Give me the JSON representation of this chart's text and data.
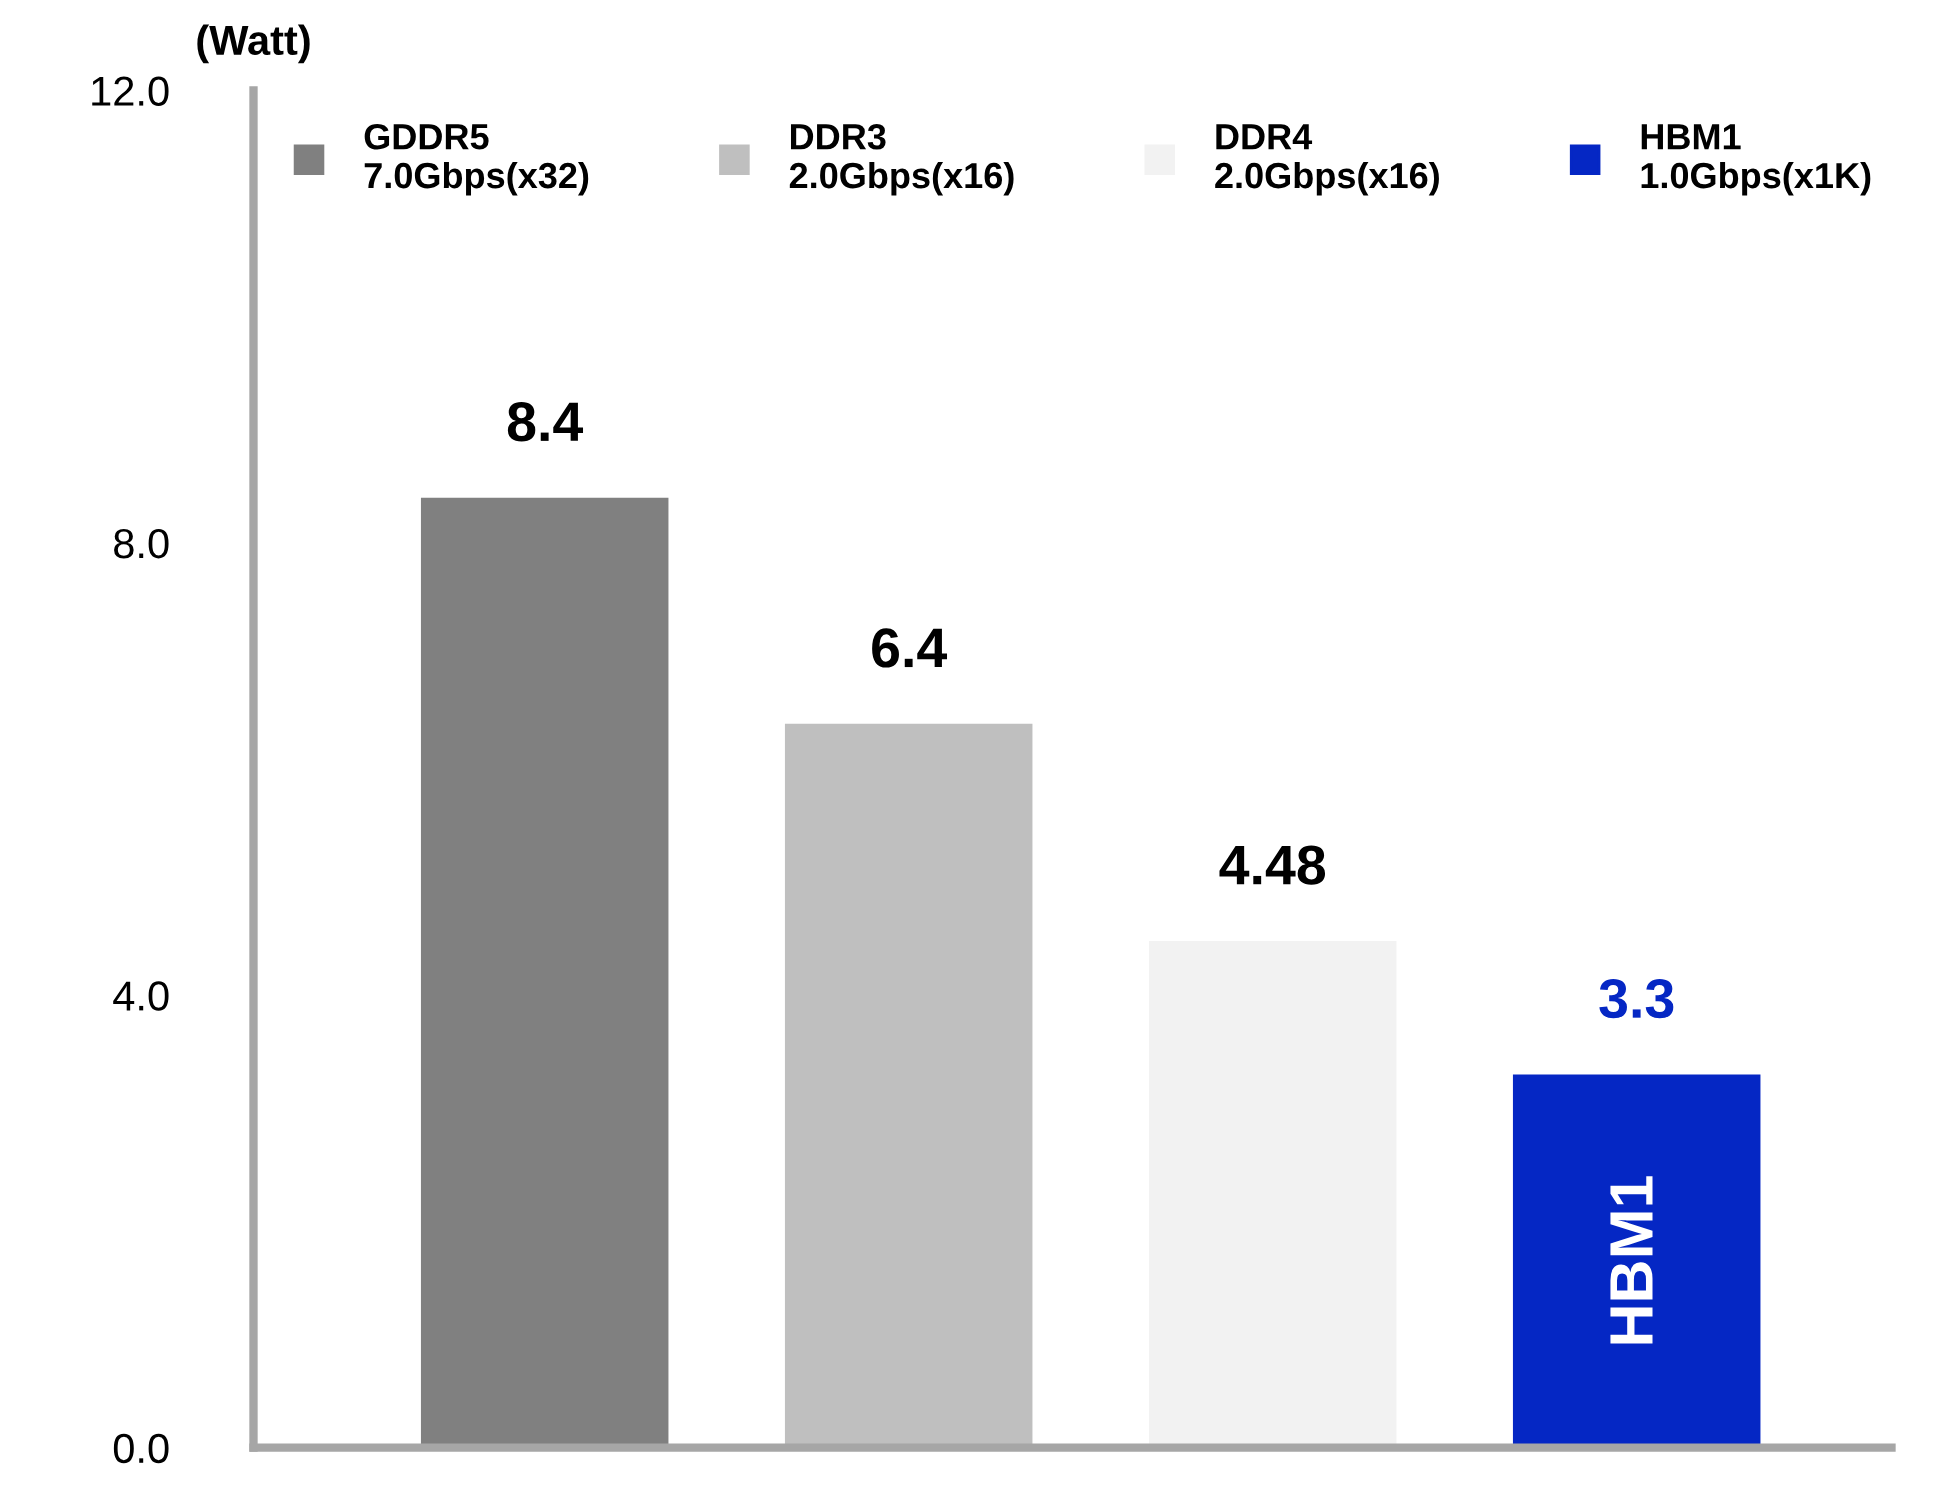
{
  "chart_data": {
    "type": "bar",
    "ylabel": "(Watt)",
    "categories": [
      null,
      null,
      null,
      null
    ],
    "series": [
      {
        "name": "GDDR5\n7.0Gbps(x32)",
        "color": "#808080",
        "values": [
          8.4,
          null,
          null,
          null
        ]
      },
      {
        "name": "DDR3\n2.0Gbps(x16)",
        "color": "#bfbfbf",
        "values": [
          null,
          6.4,
          null,
          null
        ]
      },
      {
        "name": "DDR4\n2.0Gbps(x16)",
        "color": "#f2f2f2",
        "values": [
          null,
          null,
          4.48,
          null
        ]
      },
      {
        "name": "HBM1\n1.0Gbps(x1K)",
        "color": "#0527c4",
        "values": [
          null,
          null,
          null,
          3.3
        ]
      }
    ],
    "annotations": [
      "HBM1"
    ],
    "ylim": [
      0,
      12
    ],
    "yticks": [
      {
        "value": 0,
        "label": "0.0"
      },
      {
        "value": 4,
        "label": "4.0"
      },
      {
        "value": 8,
        "label": "8.0"
      },
      {
        "value": 12,
        "label": "12.0"
      }
    ],
    "data_labels": true,
    "legend": "top",
    "grid": false
  }
}
